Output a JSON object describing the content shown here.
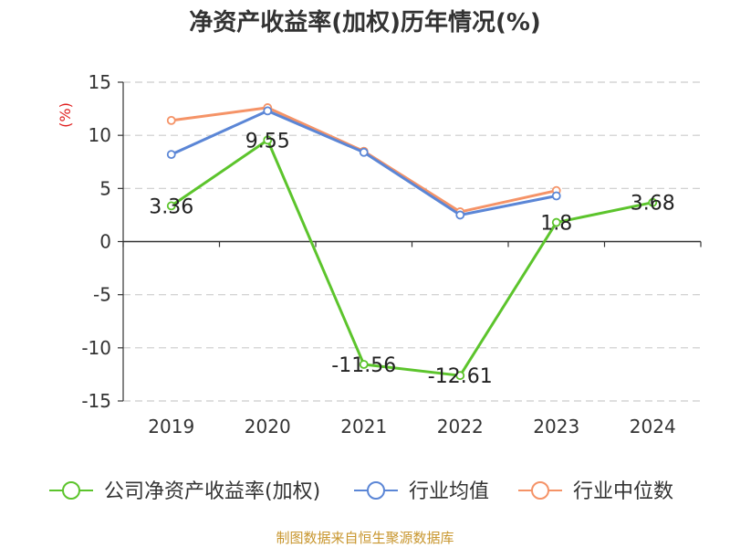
{
  "chart_data": {
    "type": "line",
    "title": "净资产收益率(加权)历年情况(%)",
    "ylabel": "(%)",
    "categories": [
      "2019",
      "2020",
      "2021",
      "2022",
      "2023",
      "2024"
    ],
    "ylim": [
      -15,
      15
    ],
    "yticks": [
      15,
      10,
      5,
      0,
      -5,
      -10,
      -15
    ],
    "grid": true,
    "legend_position": "bottom",
    "series": [
      {
        "name": "公司净资产收益率(加权)",
        "color": "#5cc42c",
        "values": [
          3.36,
          9.55,
          -11.56,
          -12.61,
          1.8,
          3.68
        ],
        "labels": [
          "3.36",
          "9.55",
          "-11.56",
          "-12.61",
          "1.8",
          "3.68"
        ]
      },
      {
        "name": "行业均值",
        "color": "#5b86d6",
        "values": [
          8.2,
          12.3,
          8.4,
          2.5,
          4.3,
          null
        ]
      },
      {
        "name": "行业中位数",
        "color": "#f59367",
        "values": [
          11.4,
          12.6,
          8.5,
          2.8,
          4.8,
          null
        ]
      }
    ]
  },
  "source": "制图数据来自恒生聚源数据库"
}
